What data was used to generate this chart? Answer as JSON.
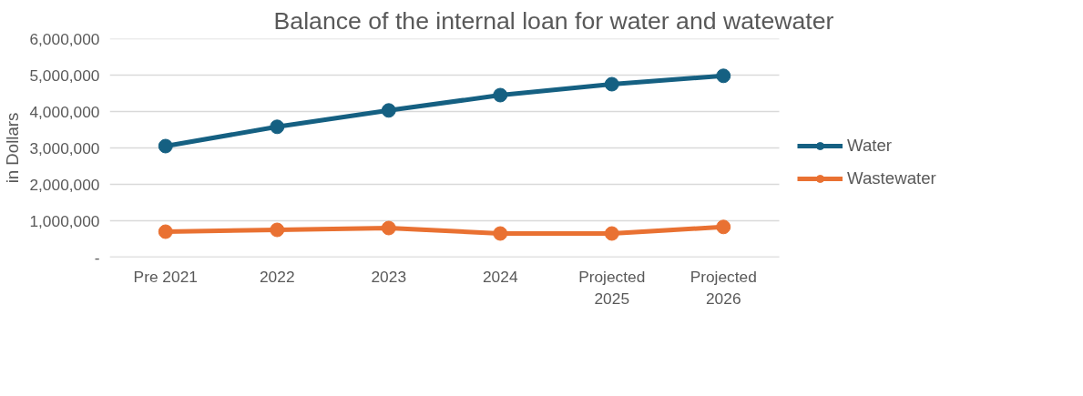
{
  "chart_data": {
    "type": "line",
    "title": "Balance of the internal loan for water and watewater",
    "ylabel": "in Dollars",
    "categories": [
      "Pre 2021",
      "2022",
      "2023",
      "2024",
      "Projected\n2025",
      "Projected\n2026"
    ],
    "series": [
      {
        "name": "Water",
        "color": "#156082",
        "values": [
          3050000,
          3580000,
          4030000,
          4450000,
          4750000,
          4980000
        ]
      },
      {
        "name": "Wastewater",
        "color": "#e97132",
        "values": [
          700000,
          750000,
          800000,
          650000,
          650000,
          830000
        ]
      }
    ],
    "ylim": [
      0,
      6000000
    ],
    "yticks": [
      {
        "value": 0,
        "label": "-"
      },
      {
        "value": 1000000,
        "label": "1,000,000"
      },
      {
        "value": 2000000,
        "label": "2,000,000"
      },
      {
        "value": 3000000,
        "label": "3,000,000"
      },
      {
        "value": 4000000,
        "label": "4,000,000"
      },
      {
        "value": 5000000,
        "label": "5,000,000"
      },
      {
        "value": 6000000,
        "label": "6,000,000"
      }
    ],
    "grid": "y",
    "legend": "right",
    "marker": "circle",
    "line_style": "solid"
  }
}
